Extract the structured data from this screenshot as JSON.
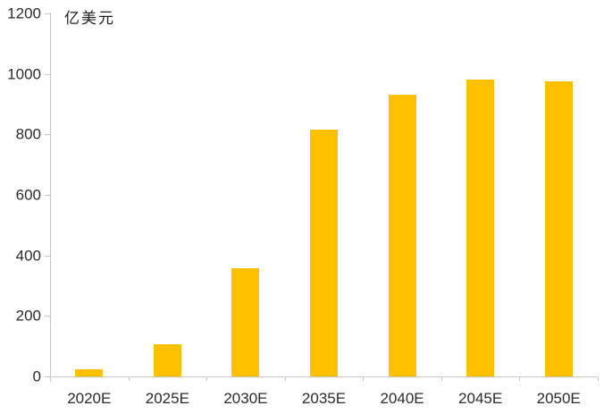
{
  "chart_data": {
    "type": "bar",
    "title": "",
    "unit_label": "亿美元",
    "xlabel": "",
    "ylabel": "亿美元",
    "categories": [
      "2020E",
      "2025E",
      "2030E",
      "2035E",
      "2040E",
      "2045E",
      "2050E"
    ],
    "values": [
      25,
      105,
      358,
      815,
      930,
      980,
      975
    ],
    "ylim": [
      0,
      1200
    ],
    "y_ticks": [
      0,
      200,
      400,
      600,
      800,
      1000,
      1200
    ],
    "grid": false,
    "legend_position": "none",
    "bar_color": "#FFC000",
    "axis_color": "#C6C6C6",
    "label_color": "#2B2B2B"
  }
}
